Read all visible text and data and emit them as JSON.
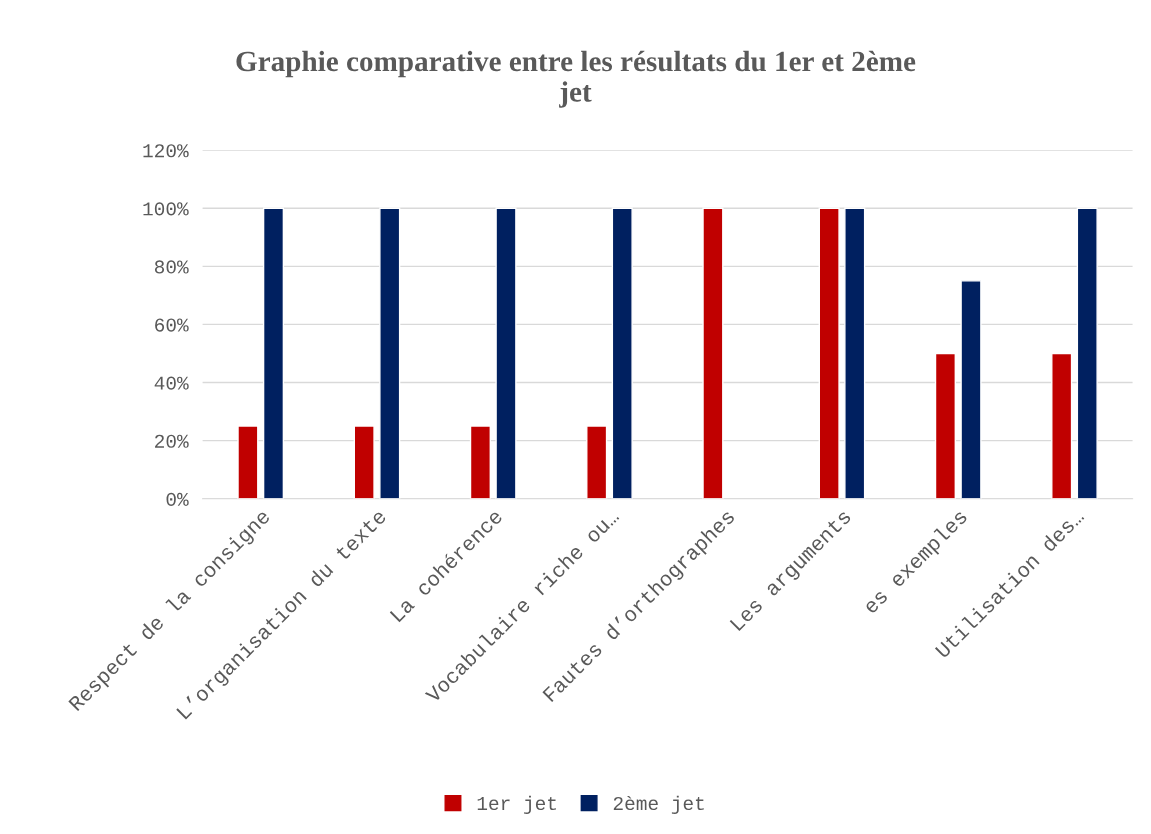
{
  "chart_data": {
    "type": "bar",
    "title": "Graphie comparative entre les résultats du 1er et 2ème\njet",
    "categories": [
      "Respect de la consigne",
      "L’organisation du texte",
      "La cohérence",
      "Vocabulaire riche ou…",
      "Fautes d’orthographes",
      "Les arguments",
      "es exemples",
      "Utilisation des…"
    ],
    "series": [
      {
        "name": "1er jet",
        "color": "#c00000",
        "values": [
          25,
          25,
          25,
          25,
          100,
          100,
          50,
          50
        ]
      },
      {
        "name": "2ème jet",
        "color": "#002060",
        "values": [
          100,
          100,
          100,
          100,
          null,
          100,
          75,
          100
        ]
      }
    ],
    "ylim": [
      0,
      120
    ],
    "yticks": [
      {
        "value": 0,
        "label": "0%"
      },
      {
        "value": 20,
        "label": "20%"
      },
      {
        "value": 40,
        "label": "40%"
      },
      {
        "value": 60,
        "label": "60%"
      },
      {
        "value": 80,
        "label": "80%"
      },
      {
        "value": 100,
        "label": "100%"
      },
      {
        "value": 120,
        "label": "120%"
      }
    ],
    "grid": "y",
    "legend": "bottom"
  }
}
